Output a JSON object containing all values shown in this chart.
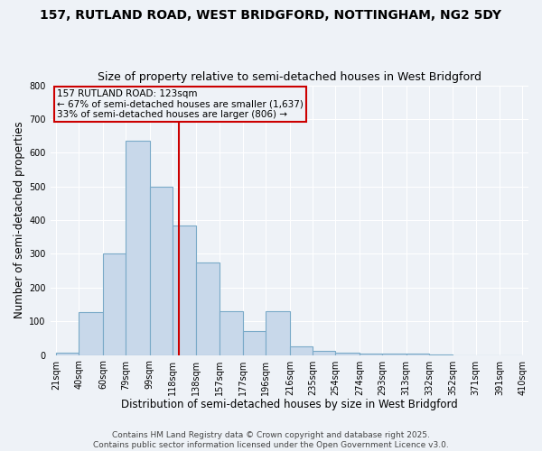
{
  "title1": "157, RUTLAND ROAD, WEST BRIDGFORD, NOTTINGHAM, NG2 5DY",
  "title2": "Size of property relative to semi-detached houses in West Bridgford",
  "xlabel": "Distribution of semi-detached houses by size in West Bridgford",
  "ylabel": "Number of semi-detached properties",
  "footnote1": "Contains HM Land Registry data © Crown copyright and database right 2025.",
  "footnote2": "Contains public sector information licensed under the Open Government Licence v3.0.",
  "bar_left_edges": [
    21,
    40,
    60,
    79,
    99,
    118,
    138,
    157,
    177,
    196,
    216,
    235,
    254,
    274,
    293,
    313,
    332,
    352,
    371,
    391
  ],
  "bar_widths": [
    19,
    20,
    19,
    20,
    19,
    20,
    19,
    20,
    19,
    20,
    19,
    19,
    20,
    19,
    20,
    19,
    20,
    19,
    20,
    19
  ],
  "bar_heights": [
    8,
    128,
    300,
    635,
    500,
    383,
    275,
    130,
    70,
    130,
    25,
    12,
    8,
    5,
    5,
    3,
    1,
    0,
    0,
    0
  ],
  "bar_color": "#c8d8ea",
  "bar_edge_color": "#7aaac8",
  "bar_edge_width": 0.8,
  "property_line_x": 123,
  "property_line_color": "#cc0000",
  "annotation_text": "157 RUTLAND ROAD: 123sqm\n← 67% of semi-detached houses are smaller (1,637)\n33% of semi-detached houses are larger (806) →",
  "annotation_box_color": "#cc0000",
  "xlim_min": 16,
  "xlim_max": 415,
  "ylim": [
    0,
    800
  ],
  "yticks": [
    0,
    100,
    200,
    300,
    400,
    500,
    600,
    700,
    800
  ],
  "xtick_labels": [
    "21sqm",
    "40sqm",
    "60sqm",
    "79sqm",
    "99sqm",
    "118sqm",
    "138sqm",
    "157sqm",
    "177sqm",
    "196sqm",
    "216sqm",
    "235sqm",
    "254sqm",
    "274sqm",
    "293sqm",
    "313sqm",
    "332sqm",
    "352sqm",
    "371sqm",
    "391sqm",
    "410sqm"
  ],
  "xtick_positions": [
    21,
    40,
    60,
    79,
    99,
    118,
    138,
    157,
    177,
    196,
    216,
    235,
    254,
    274,
    293,
    313,
    332,
    352,
    371,
    391,
    410
  ],
  "bg_color": "#eef2f7",
  "grid_color": "#ffffff",
  "title1_fontsize": 10,
  "title2_fontsize": 9,
  "xlabel_fontsize": 8.5,
  "ylabel_fontsize": 8.5,
  "footnote_fontsize": 6.5,
  "tick_fontsize": 7,
  "ann_fontsize": 7.5
}
